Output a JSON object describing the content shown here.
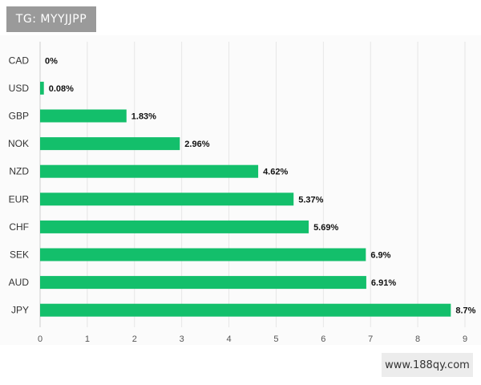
{
  "watermarks": {
    "top": "TG: MYYJJPP",
    "bottom": "www.188qy.com"
  },
  "colors": {
    "bar": "#13bf6b",
    "grid": "#e6e6e6",
    "axis": "#cccccc"
  },
  "chart_data": {
    "type": "bar",
    "orientation": "horizontal",
    "categories": [
      "CAD",
      "USD",
      "GBP",
      "NOK",
      "NZD",
      "EUR",
      "CHF",
      "SEK",
      "AUD",
      "JPY"
    ],
    "values": [
      0,
      0.08,
      1.83,
      2.96,
      4.62,
      5.37,
      5.69,
      6.9,
      6.91,
      8.7
    ],
    "value_labels": [
      "0%",
      "0.08%",
      "1.83%",
      "2.96%",
      "4.62%",
      "5.37%",
      "5.69%",
      "6.9%",
      "6.91%",
      "8.7%"
    ],
    "xticks": [
      "0",
      "1",
      "2",
      "3",
      "4",
      "5",
      "6",
      "7",
      "8",
      "9"
    ],
    "xlim": [
      0,
      9
    ],
    "grid": true,
    "legend": "none",
    "title": "",
    "xlabel": "",
    "ylabel": ""
  }
}
